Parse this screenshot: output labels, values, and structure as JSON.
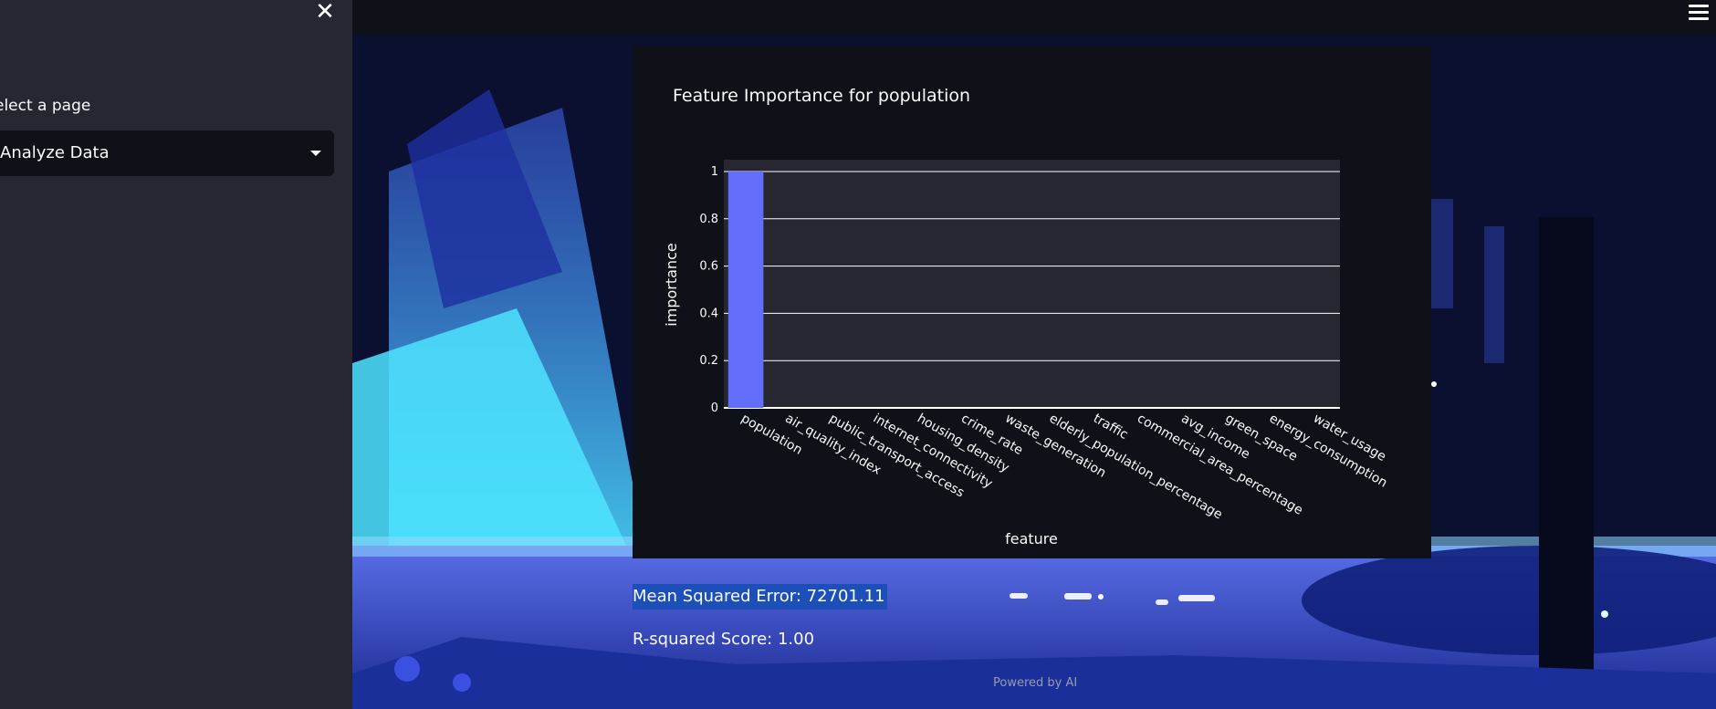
{
  "sidebar": {
    "close_icon": "close-icon",
    "select_label": "elect a page",
    "selected_page": "Analyze Data",
    "caret_icon": "chevron-down-icon"
  },
  "header": {
    "menu_icon": "hamburger-menu-icon"
  },
  "chart": {
    "title": "Feature Importance for population"
  },
  "chart_data": {
    "type": "bar",
    "title": "Feature Importance for population",
    "xlabel": "feature",
    "ylabel": "importance",
    "categories": [
      "population",
      "air_quality_index",
      "public_transport_access",
      "internet_connectivity",
      "housing_density",
      "crime_rate",
      "waste_generation",
      "elderly_population_percentage",
      "traffic",
      "commercial_area_percentage",
      "avg_income",
      "green_space",
      "energy_consumption",
      "water_usage"
    ],
    "values": [
      1,
      0,
      0,
      0,
      0,
      0,
      0,
      0,
      0,
      0,
      0,
      0,
      0,
      0
    ],
    "ylim": [
      0,
      1.05
    ],
    "yticks": [
      "0",
      "0.2",
      "0.4",
      "0.6",
      "0.8",
      "1"
    ],
    "ytick_values": [
      0,
      0.2,
      0.4,
      0.6,
      0.8,
      1
    ],
    "grid": true,
    "bar_color": "#636efa",
    "plot_bg": "#262730"
  },
  "metrics": {
    "mse": "Mean Squared Error: 72701.11",
    "r2": "R-squared Score: 1.00"
  },
  "footer": {
    "text": "Powered by AI"
  }
}
